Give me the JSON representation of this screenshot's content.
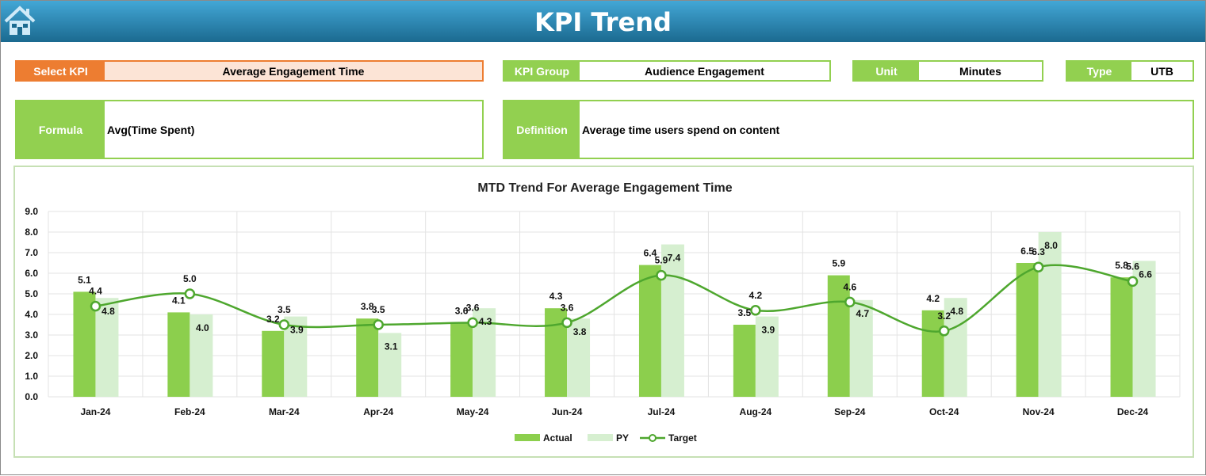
{
  "header": {
    "title": "KPI Trend",
    "home_icon": "home-icon"
  },
  "fields": {
    "select_kpi": {
      "label": "Select KPI",
      "value": "Average Engagement Time"
    },
    "kpi_group": {
      "label": "KPI Group",
      "value": "Audience Engagement"
    },
    "unit": {
      "label": "Unit",
      "value": "Minutes"
    },
    "type": {
      "label": "Type",
      "value": "UTB"
    },
    "formula": {
      "label": "Formula",
      "value": "Avg(Time Spent)"
    },
    "definition": {
      "label": "Definition",
      "value": "Average time users spend on content"
    }
  },
  "colors": {
    "actual": "#8ccf4d",
    "py": "#d6efd0",
    "target": "#4ea72e",
    "accent_orange": "#ed7d31",
    "header_blue": "#1b6a90"
  },
  "chart_data": {
    "type": "bar",
    "title": "MTD Trend For Average Engagement Time",
    "categories": [
      "Jan-24",
      "Feb-24",
      "Mar-24",
      "Apr-24",
      "May-24",
      "Jun-24",
      "Jul-24",
      "Aug-24",
      "Sep-24",
      "Oct-24",
      "Nov-24",
      "Dec-24"
    ],
    "ylim": [
      0,
      9
    ],
    "yticks": [
      "0.0",
      "1.0",
      "2.0",
      "3.0",
      "4.0",
      "5.0",
      "6.0",
      "7.0",
      "8.0",
      "9.0"
    ],
    "grid": true,
    "legend": "bottom",
    "series": [
      {
        "name": "Actual",
        "type": "bar",
        "values": [
          5.1,
          4.1,
          3.2,
          3.8,
          3.6,
          4.3,
          6.4,
          3.5,
          5.9,
          4.2,
          6.5,
          5.8
        ]
      },
      {
        "name": "PY",
        "type": "bar",
        "values": [
          4.8,
          4.0,
          3.9,
          3.1,
          4.3,
          3.8,
          7.4,
          3.9,
          4.7,
          4.8,
          8.0,
          6.6
        ]
      },
      {
        "name": "Target",
        "type": "line",
        "values": [
          4.4,
          5.0,
          3.5,
          3.5,
          3.6,
          3.6,
          5.9,
          4.2,
          4.6,
          3.2,
          6.3,
          5.6
        ]
      }
    ]
  }
}
